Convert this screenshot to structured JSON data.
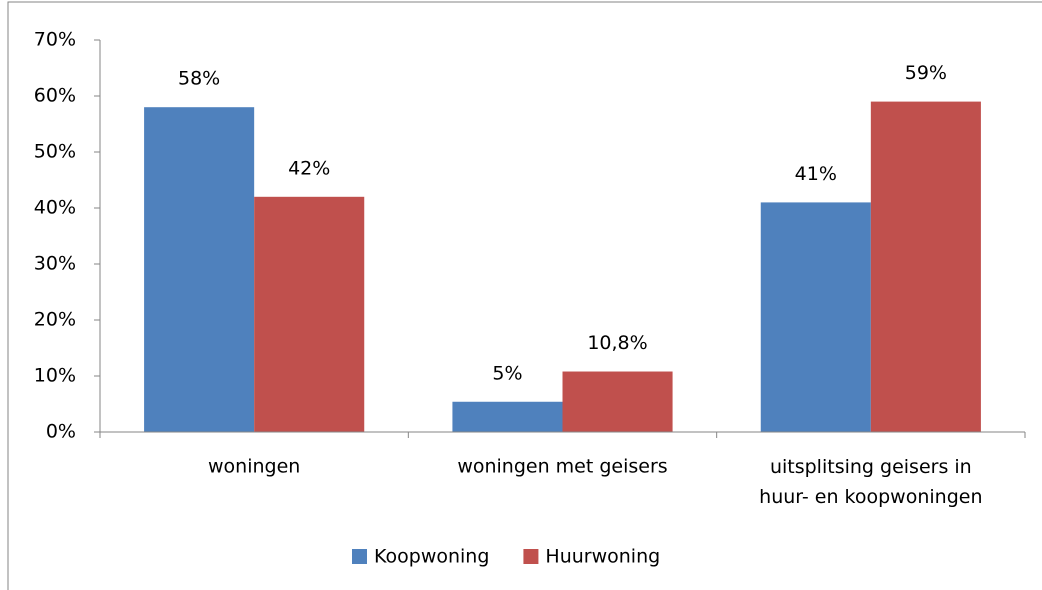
{
  "chart_data": {
    "type": "bar",
    "categories": [
      "woningen",
      "woningen met geisers",
      "uitsplitsing geisers in huur- en koopwoningen"
    ],
    "series": [
      {
        "name": "Koopwoning",
        "color": "#4f81bd",
        "values": [
          58,
          5.4,
          41
        ],
        "value_labels": [
          "58%",
          "5%",
          "41%"
        ]
      },
      {
        "name": "Huurwoning",
        "color": "#c0504d",
        "values": [
          42,
          10.8,
          59
        ],
        "value_labels": [
          "42%",
          "10,8%",
          "59%"
        ]
      }
    ],
    "ylim": [
      0,
      70
    ],
    "yticks": [
      {
        "value": 0,
        "label": "0%"
      },
      {
        "value": 10,
        "label": "10%"
      },
      {
        "value": 20,
        "label": "20%"
      },
      {
        "value": 30,
        "label": "30%"
      },
      {
        "value": 40,
        "label": "40%"
      },
      {
        "value": 50,
        "label": "50%"
      },
      {
        "value": 60,
        "label": "60%"
      },
      {
        "value": 70,
        "label": "70%"
      }
    ],
    "grid": false,
    "legend": "bottom"
  }
}
